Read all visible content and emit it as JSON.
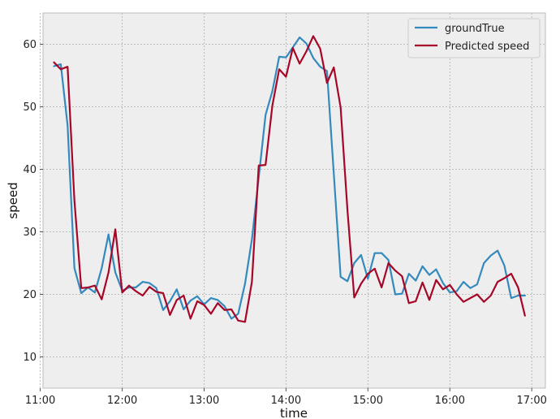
{
  "chart_data": {
    "type": "line",
    "title": "",
    "xlabel": "time",
    "ylabel": "speed",
    "x_unit": "time of day",
    "xlim": [
      "11:02",
      "17:10"
    ],
    "ylim": [
      5,
      65
    ],
    "xticks": [
      "11:00",
      "12:00",
      "13:00",
      "14:00",
      "15:00",
      "16:00",
      "17:00"
    ],
    "yticks": [
      10,
      20,
      30,
      40,
      50,
      60
    ],
    "grid": true,
    "legend_position": "top-right",
    "colors": {
      "plot_background": "#eeeeee",
      "grid": "#b0b0b0",
      "frame": "#bcbcbc",
      "groundTrue": "#348abd",
      "predicted": "#a60628"
    },
    "series": [
      {
        "name": "groundTrue",
        "color": "#348abd",
        "x": [
          "11:10",
          "11:15",
          "11:20",
          "11:25",
          "11:30",
          "11:35",
          "11:40",
          "11:45",
          "11:50",
          "11:55",
          "12:00",
          "12:05",
          "12:10",
          "12:15",
          "12:20",
          "12:25",
          "12:30",
          "12:35",
          "12:40",
          "12:45",
          "12:50",
          "12:55",
          "13:00",
          "13:05",
          "13:10",
          "13:15",
          "13:20",
          "13:25",
          "13:30",
          "13:35",
          "13:40",
          "13:45",
          "13:50",
          "13:55",
          "14:00",
          "14:05",
          "14:10",
          "14:15",
          "14:20",
          "14:25",
          "14:30",
          "14:35",
          "14:40",
          "14:45",
          "14:50",
          "14:55",
          "15:00",
          "15:05",
          "15:10",
          "15:15",
          "15:20",
          "15:25",
          "15:30",
          "15:35",
          "15:40",
          "15:45",
          "15:50",
          "15:55",
          "16:00",
          "16:05",
          "16:10",
          "16:15",
          "16:20",
          "16:25",
          "16:30",
          "16:35",
          "16:40",
          "16:45",
          "16:50",
          "16:55"
        ],
        "y": [
          56.5,
          56.8,
          47,
          24.2,
          20.2,
          21.1,
          20.3,
          24.2,
          29.6,
          23.5,
          20.6,
          21.1,
          21.1,
          22,
          21.8,
          21,
          17.5,
          18.9,
          20.8,
          17.6,
          19,
          19.7,
          18.4,
          19.4,
          19.1,
          18.1,
          16.1,
          16.9,
          21.7,
          28.8,
          38.7,
          48.7,
          52.5,
          58,
          57.9,
          59.5,
          61.1,
          60.1,
          57.8,
          56.4,
          55.7,
          39.3,
          22.8,
          22.1,
          25,
          26.3,
          22.5,
          26.6,
          26.6,
          25.5,
          20,
          20.1,
          23.3,
          22.2,
          24.5,
          23.1,
          24,
          21.8,
          20.3,
          20.5,
          22,
          21,
          21.6,
          25,
          26.2,
          27,
          24.6,
          19.4,
          19.8,
          19.8
        ]
      },
      {
        "name": "Predicted speed",
        "color": "#a60628",
        "x": [
          "11:10",
          "11:15",
          "11:20",
          "11:25",
          "11:30",
          "11:35",
          "11:40",
          "11:45",
          "11:50",
          "11:55",
          "12:00",
          "12:05",
          "12:10",
          "12:15",
          "12:20",
          "12:25",
          "12:30",
          "12:35",
          "12:40",
          "12:45",
          "12:50",
          "12:55",
          "13:00",
          "13:05",
          "13:10",
          "13:15",
          "13:20",
          "13:25",
          "13:30",
          "13:35",
          "13:40",
          "13:45",
          "13:50",
          "13:55",
          "14:00",
          "14:05",
          "14:10",
          "14:15",
          "14:20",
          "14:25",
          "14:30",
          "14:35",
          "14:40",
          "14:45",
          "14:50",
          "14:55",
          "15:00",
          "15:05",
          "15:10",
          "15:15",
          "15:20",
          "15:25",
          "15:30",
          "15:35",
          "15:40",
          "15:45",
          "15:50",
          "15:55",
          "16:00",
          "16:05",
          "16:10",
          "16:15",
          "16:20",
          "16:25",
          "16:30",
          "16:35",
          "16:40",
          "16:45",
          "16:50",
          "16:55"
        ],
        "y": [
          57.1,
          56,
          56.4,
          35,
          21,
          21.1,
          21.4,
          19.2,
          23.5,
          30.4,
          20.3,
          21.4,
          20.5,
          19.8,
          21.2,
          20.4,
          20.2,
          16.7,
          19.1,
          19.8,
          16.1,
          18.9,
          18.3,
          16.9,
          18.6,
          17.5,
          17.6,
          15.8,
          15.6,
          22,
          40.6,
          40.7,
          50.2,
          56,
          54.8,
          59.4,
          56.9,
          58.9,
          61.3,
          59.3,
          53.8,
          56.3,
          49.9,
          33.5,
          19.5,
          21.7,
          23.3,
          24.1,
          21.1,
          25,
          23.8,
          22.9,
          18.6,
          18.9,
          21.9,
          19.1,
          22.3,
          20.8,
          21.5,
          20,
          18.8,
          19.4,
          20,
          18.8,
          19.8,
          22,
          22.6,
          23.3,
          21.1,
          16.6
        ]
      }
    ]
  }
}
